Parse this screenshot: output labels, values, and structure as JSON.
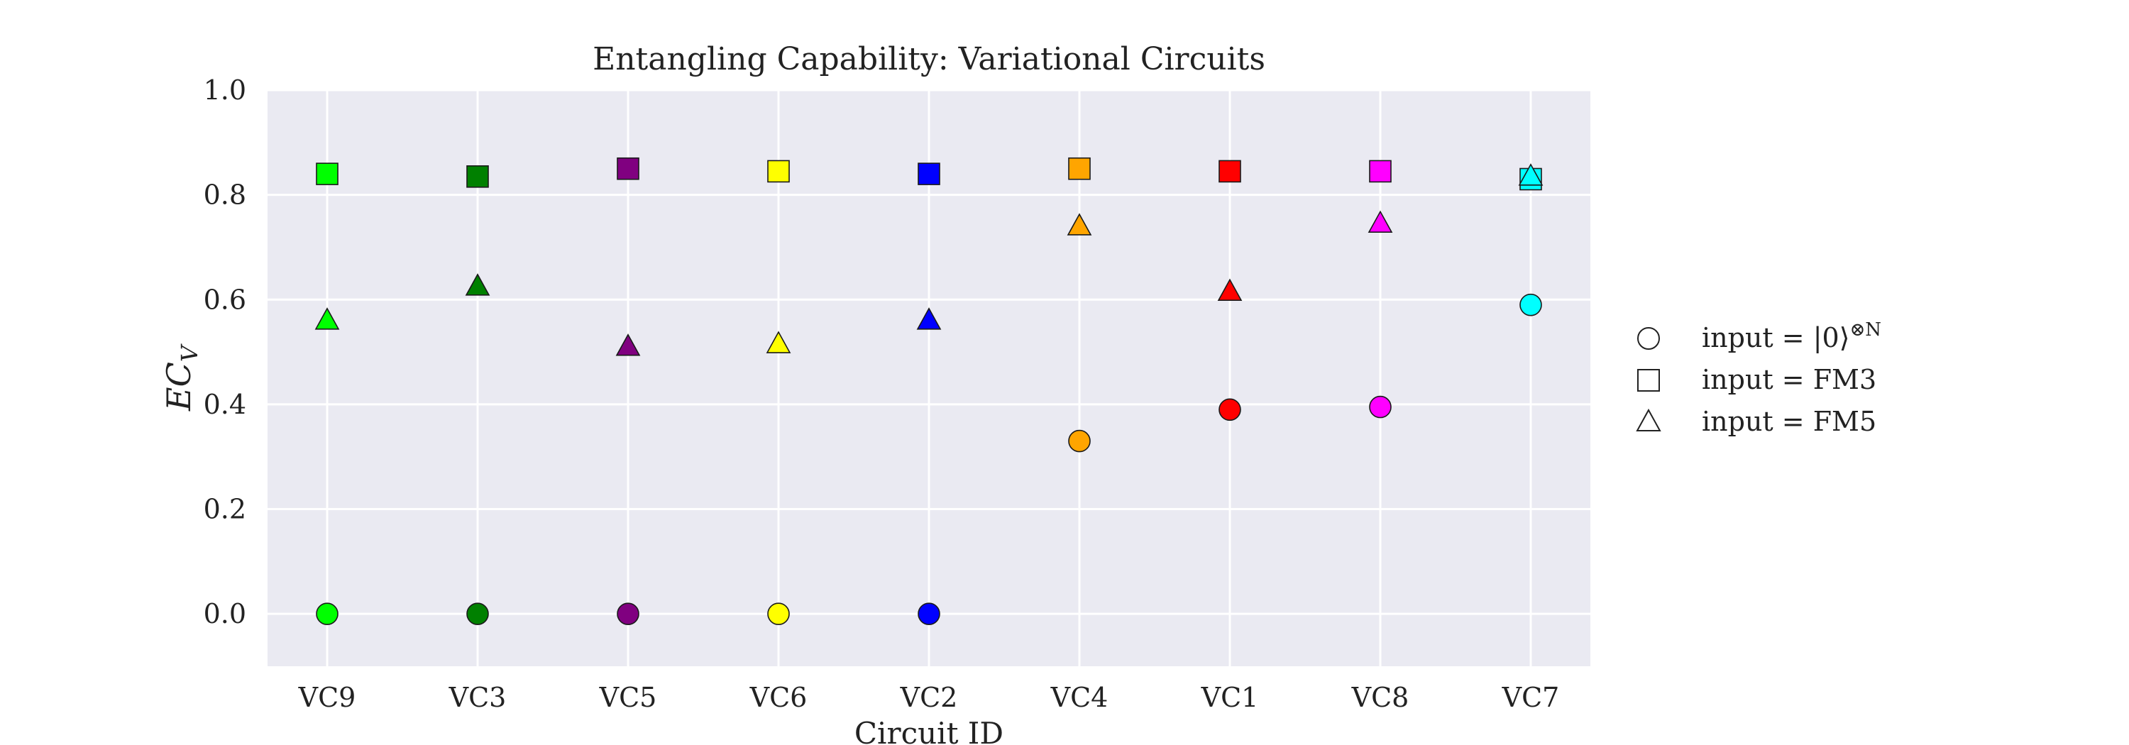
{
  "chart_data": {
    "type": "scatter",
    "title": "Entangling Capability: Variational Circuits",
    "xlabel": "Circuit ID",
    "ylabel": "EC",
    "ylabel_sub": "V",
    "ylim": [
      -0.1,
      1.0
    ],
    "yticks": [
      "0.0",
      "0.2",
      "0.4",
      "0.6",
      "0.8",
      "1.0"
    ],
    "grid": true,
    "legend_position": "right",
    "categories": [
      "VC9",
      "VC3",
      "VC5",
      "VC6",
      "VC2",
      "VC4",
      "VC1",
      "VC8",
      "VC7"
    ],
    "category_colors": [
      "#00ff00",
      "#008000",
      "#800080",
      "#ffff00",
      "#0000ff",
      "#ffa500",
      "#ff0000",
      "#ff00ff",
      "#00ffff"
    ],
    "series": [
      {
        "name_prefix": "input = |0⟩",
        "name_sup": "⊗N",
        "marker": "circle",
        "values": [
          0.0,
          0.0,
          0.0,
          0.0,
          0.0,
          0.33,
          0.39,
          0.395,
          0.59
        ]
      },
      {
        "name": "input = FM3",
        "marker": "square",
        "values": [
          0.84,
          0.835,
          0.85,
          0.845,
          0.84,
          0.85,
          0.845,
          0.845,
          0.83
        ]
      },
      {
        "name": "input = FM5",
        "marker": "triangle",
        "values": [
          0.56,
          0.625,
          0.51,
          0.515,
          0.56,
          0.74,
          0.615,
          0.745,
          0.835
        ]
      }
    ]
  }
}
